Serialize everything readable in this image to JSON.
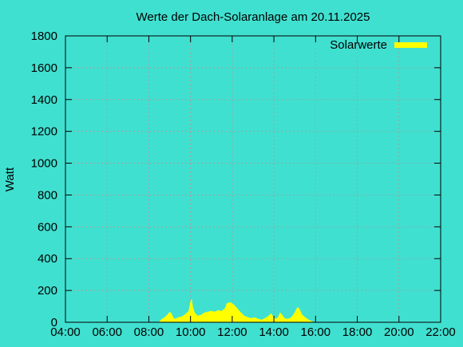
{
  "chart_data": {
    "type": "area",
    "title": "Werte der Dach-Solaranlage am 20.11.2025",
    "ylabel": "Watt",
    "xlabel": "",
    "ylim": [
      0,
      1800
    ],
    "xlim": [
      "04:00",
      "22:00"
    ],
    "grid": true,
    "legend_position": "top-right",
    "x_ticks": [
      "04:00",
      "06:00",
      "08:00",
      "10:00",
      "12:00",
      "14:00",
      "16:00",
      "18:00",
      "20:00",
      "22:00"
    ],
    "y_ticks": [
      0,
      200,
      400,
      600,
      800,
      1000,
      1200,
      1400,
      1600,
      1800
    ],
    "series": [
      {
        "name": "Solarwerte",
        "color": "#ffff00",
        "points": [
          [
            "08:30",
            0
          ],
          [
            "08:35",
            15
          ],
          [
            "08:45",
            30
          ],
          [
            "08:55",
            50
          ],
          [
            "09:00",
            65
          ],
          [
            "09:05",
            55
          ],
          [
            "09:10",
            30
          ],
          [
            "09:15",
            20
          ],
          [
            "09:25",
            30
          ],
          [
            "09:35",
            35
          ],
          [
            "09:45",
            50
          ],
          [
            "09:55",
            70
          ],
          [
            "10:00",
            130
          ],
          [
            "10:03",
            145
          ],
          [
            "10:07",
            90
          ],
          [
            "10:12",
            60
          ],
          [
            "10:20",
            40
          ],
          [
            "10:30",
            45
          ],
          [
            "10:40",
            60
          ],
          [
            "10:50",
            65
          ],
          [
            "11:00",
            70
          ],
          [
            "11:10",
            65
          ],
          [
            "11:20",
            75
          ],
          [
            "11:30",
            70
          ],
          [
            "11:40",
            90
          ],
          [
            "11:45",
            120
          ],
          [
            "11:55",
            125
          ],
          [
            "12:05",
            110
          ],
          [
            "12:15",
            85
          ],
          [
            "12:25",
            60
          ],
          [
            "12:35",
            40
          ],
          [
            "12:45",
            30
          ],
          [
            "12:55",
            25
          ],
          [
            "13:05",
            30
          ],
          [
            "13:15",
            20
          ],
          [
            "13:25",
            15
          ],
          [
            "13:35",
            25
          ],
          [
            "13:45",
            40
          ],
          [
            "13:52",
            55
          ],
          [
            "13:58",
            35
          ],
          [
            "14:05",
            20
          ],
          [
            "14:12",
            30
          ],
          [
            "14:18",
            60
          ],
          [
            "14:24",
            45
          ],
          [
            "14:30",
            25
          ],
          [
            "14:40",
            20
          ],
          [
            "14:50",
            30
          ],
          [
            "15:00",
            60
          ],
          [
            "15:08",
            95
          ],
          [
            "15:13",
            85
          ],
          [
            "15:20",
            50
          ],
          [
            "15:30",
            30
          ],
          [
            "15:40",
            15
          ],
          [
            "15:50",
            5
          ],
          [
            "15:55",
            0
          ]
        ]
      }
    ]
  }
}
